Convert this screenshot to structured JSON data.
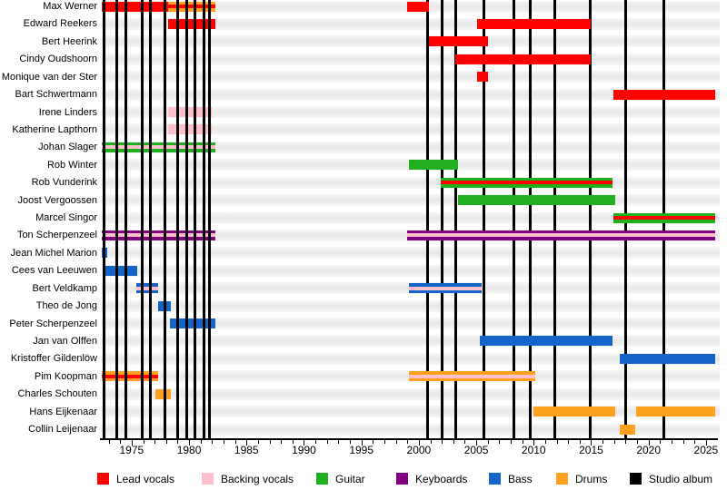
{
  "chart_data": {
    "type": "timeline",
    "description": "Band members timeline (gantt-style) with roles as colored bars and studio albums as vertical black lines",
    "x_axis": {
      "min": 1972.4,
      "max": 2025.8,
      "major_tick_labels": [
        1975,
        1980,
        1985,
        1990,
        1995,
        2000,
        2005,
        2010,
        2015,
        2020,
        2025
      ],
      "minor_tick_every": 1,
      "grid": false
    },
    "colors": {
      "lead_vocals": "#FF0000",
      "backing_vocals": "#FFC0CB",
      "guitar": "#1FAF1F",
      "keyboards": "#800080",
      "bass": "#1565C8",
      "drums": "#FFA01F",
      "studio_album": "#000000"
    },
    "album_lines": {
      "front_layer_years": [
        1972.63,
        1973.71,
        1974.46,
        1975.92,
        1976.67,
        1977.86,
        1978.97,
        1979.8,
        1980.51,
        1981.3,
        1981.78
      ],
      "back_layer_years": [
        2000.8,
        2001.99,
        2003.25,
        2005.63,
        2008.24,
        2009.7,
        2011.8,
        2014.96,
        2018.01,
        2021.33
      ]
    },
    "members": [
      {
        "name": "Max Werner",
        "bars": [
          {
            "from": 1972.4,
            "to": 1978.2,
            "role": "lead_vocals"
          },
          {
            "from": 1978.2,
            "to": 1982.3,
            "role": "drums",
            "stripe": "lead_vocals"
          },
          {
            "from": 1999.0,
            "to": 2000.9,
            "role": "lead_vocals"
          }
        ]
      },
      {
        "name": "Edward Reekers",
        "bars": [
          {
            "from": 1978.2,
            "to": 1982.3,
            "role": "lead_vocals"
          },
          {
            "from": 2005.1,
            "to": 2015.0,
            "role": "lead_vocals"
          }
        ]
      },
      {
        "name": "Bert Heerink",
        "bars": [
          {
            "from": 2000.9,
            "to": 2006.0,
            "role": "lead_vocals"
          }
        ]
      },
      {
        "name": "Cindy Oudshoorn",
        "bars": [
          {
            "from": 2003.2,
            "to": 2015.0,
            "role": "lead_vocals"
          }
        ]
      },
      {
        "name": "Monique van der Ster",
        "bars": [
          {
            "from": 2005.1,
            "to": 2006.0,
            "role": "lead_vocals"
          }
        ]
      },
      {
        "name": "Bart Schwertmann",
        "bars": [
          {
            "from": 2016.9,
            "to": 2025.8,
            "role": "lead_vocals"
          }
        ]
      },
      {
        "name": "Irene Linders",
        "bars": [
          {
            "from": 1978.2,
            "to": 1982.0,
            "role": "backing_vocals"
          }
        ]
      },
      {
        "name": "Katherine Lapthorn",
        "bars": [
          {
            "from": 1978.2,
            "to": 1982.0,
            "role": "backing_vocals"
          }
        ]
      },
      {
        "name": "Johan Slager",
        "bars": [
          {
            "from": 1972.4,
            "to": 1982.3,
            "role": "guitar",
            "stripe": "backing_vocals"
          }
        ]
      },
      {
        "name": "Rob Winter",
        "bars": [
          {
            "from": 1999.1,
            "to": 2003.4,
            "role": "guitar"
          }
        ]
      },
      {
        "name": "Rob Vunderink",
        "bars": [
          {
            "from": 2001.9,
            "to": 2016.9,
            "role": "guitar",
            "stripe": "lead_vocals"
          }
        ]
      },
      {
        "name": "Joost Vergoossen",
        "bars": [
          {
            "from": 2003.4,
            "to": 2017.1,
            "role": "guitar"
          }
        ]
      },
      {
        "name": "Marcel Singor",
        "bars": [
          {
            "from": 2016.9,
            "to": 2025.8,
            "role": "guitar",
            "stripe": "lead_vocals"
          }
        ]
      },
      {
        "name": "Ton Scherpenzeel",
        "bars": [
          {
            "from": 1972.4,
            "to": 1982.3,
            "role": "keyboards",
            "stripe": "backing_vocals"
          },
          {
            "from": 1999.0,
            "to": 2025.8,
            "role": "keyboards",
            "stripe": "backing_vocals"
          }
        ]
      },
      {
        "name": "Jean Michel Marion",
        "bars": [
          {
            "from": 1972.4,
            "to": 1972.9,
            "role": "bass"
          }
        ]
      },
      {
        "name": "Cees van Leeuwen",
        "bars": [
          {
            "from": 1972.6,
            "to": 1975.5,
            "role": "bass"
          }
        ]
      },
      {
        "name": "Bert Veldkamp",
        "bars": [
          {
            "from": 1975.4,
            "to": 1977.3,
            "role": "bass",
            "stripe": "backing_vocals"
          },
          {
            "from": 1999.1,
            "to": 2005.5,
            "role": "bass",
            "stripe": "backing_vocals"
          }
        ]
      },
      {
        "name": "Theo de Jong",
        "bars": [
          {
            "from": 1977.3,
            "to": 1978.4,
            "role": "bass"
          }
        ]
      },
      {
        "name": "Peter Scherpenzeel",
        "bars": [
          {
            "from": 1978.3,
            "to": 1982.3,
            "role": "bass"
          }
        ]
      },
      {
        "name": "Jan van Olffen",
        "bars": [
          {
            "from": 2005.3,
            "to": 2016.9,
            "role": "bass"
          }
        ]
      },
      {
        "name": "Kristoffer Gildenlöw",
        "bars": [
          {
            "from": 2017.5,
            "to": 2025.8,
            "role": "bass"
          }
        ]
      },
      {
        "name": "Pim Koopman",
        "bars": [
          {
            "from": 1972.4,
            "to": 1977.3,
            "role": "drums",
            "stripe": "lead_vocals"
          },
          {
            "from": 1999.1,
            "to": 2010.1,
            "role": "drums",
            "stripe": "backing_vocals"
          }
        ]
      },
      {
        "name": "Charles Schouten",
        "bars": [
          {
            "from": 1977.1,
            "to": 1978.4,
            "role": "drums"
          }
        ]
      },
      {
        "name": "Hans Eijkenaar",
        "bars": [
          {
            "from": 2010.0,
            "to": 2017.1,
            "role": "drums"
          },
          {
            "from": 2018.9,
            "to": 2025.8,
            "role": "drums"
          }
        ]
      },
      {
        "name": "Collin Leijenaar",
        "bars": [
          {
            "from": 2017.5,
            "to": 2018.8,
            "role": "drums"
          }
        ]
      }
    ],
    "legend": [
      {
        "label": "Lead vocals",
        "role": "lead_vocals"
      },
      {
        "label": "Backing vocals",
        "role": "backing_vocals"
      },
      {
        "label": "Guitar",
        "role": "guitar"
      },
      {
        "label": "Keyboards",
        "role": "keyboards"
      },
      {
        "label": "Bass",
        "role": "bass"
      },
      {
        "label": "Drums",
        "role": "drums"
      },
      {
        "label": "Studio album",
        "role": "studio_album"
      }
    ]
  }
}
